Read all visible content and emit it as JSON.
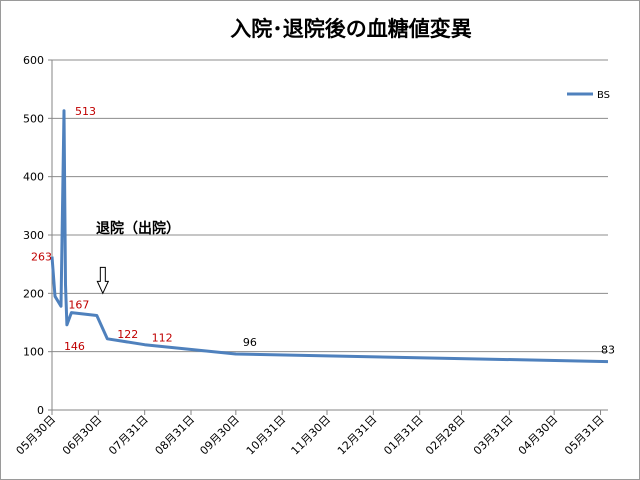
{
  "chart_data": {
    "type": "line",
    "title": "入院･退院後の血糖値変異",
    "xlabel": "",
    "ylabel": "",
    "ylim": [
      0,
      600
    ],
    "yticks": [
      0,
      100,
      200,
      300,
      400,
      500,
      600
    ],
    "x_axis_start": "2015-05-30",
    "x_axis_end": "2016-06-05",
    "x_ticks": [
      {
        "date": "2015-05-30",
        "label": "05月30日"
      },
      {
        "date": "2015-06-30",
        "label": "06月30日"
      },
      {
        "date": "2015-07-31",
        "label": "07月31日"
      },
      {
        "date": "2015-08-31",
        "label": "08月31日"
      },
      {
        "date": "2015-09-30",
        "label": "09月30日"
      },
      {
        "date": "2015-10-31",
        "label": "10月31日"
      },
      {
        "date": "2015-11-30",
        "label": "11月30日"
      },
      {
        "date": "2015-12-31",
        "label": "12月31日"
      },
      {
        "date": "2016-01-31",
        "label": "01月31日"
      },
      {
        "date": "2016-02-28",
        "label": "02月28日"
      },
      {
        "date": "2016-03-31",
        "label": "03月31日"
      },
      {
        "date": "2016-04-30",
        "label": "04月30日"
      },
      {
        "date": "2016-05-31",
        "label": "05月31日"
      }
    ],
    "grid": true,
    "legend_position": "top-right",
    "series": [
      {
        "name": "BS",
        "color": "#4F81BD",
        "points": [
          {
            "x": "2015-05-30",
            "y": 263,
            "label": "263",
            "label_color": "#c00000"
          },
          {
            "x": "2015-06-01",
            "y": 195
          },
          {
            "x": "2015-06-05",
            "y": 178
          },
          {
            "x": "2015-06-07",
            "y": 513,
            "label": "513",
            "label_color": "#c00000"
          },
          {
            "x": "2015-06-08",
            "y": 215
          },
          {
            "x": "2015-06-09",
            "y": 146,
            "label": "146",
            "label_color": "#c00000"
          },
          {
            "x": "2015-06-12",
            "y": 167,
            "label": "167",
            "label_color": "#c00000"
          },
          {
            "x": "2015-06-29",
            "y": 162
          },
          {
            "x": "2015-07-06",
            "y": 122,
            "label": "122",
            "label_color": "#c00000"
          },
          {
            "x": "2015-07-31",
            "y": 112,
            "label": "112",
            "label_color": "#c00000"
          },
          {
            "x": "2015-09-30",
            "y": 96,
            "label": "96",
            "label_color": "#000000"
          },
          {
            "x": "2016-06-05",
            "y": 83,
            "label": "83",
            "label_color": "#000000"
          }
        ]
      }
    ],
    "annotations": [
      {
        "text": "退院（出院）",
        "arrow_to": {
          "x": "2015-07-03",
          "y": 200
        }
      }
    ]
  }
}
